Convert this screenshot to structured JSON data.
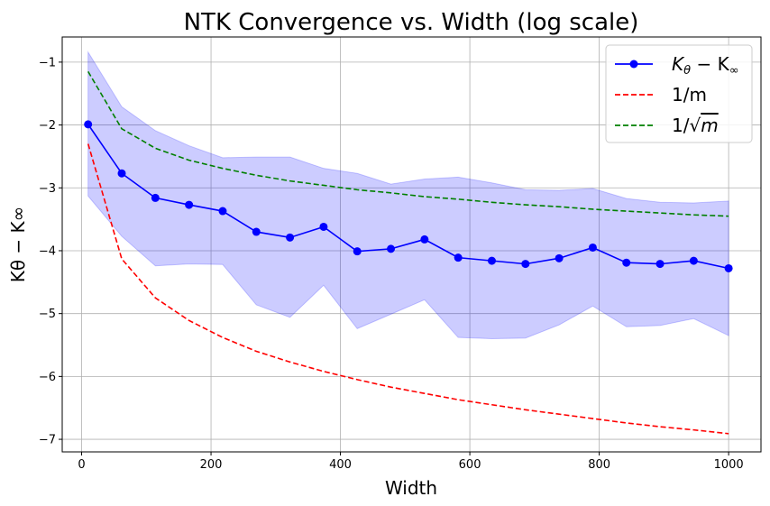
{
  "chart_data": {
    "type": "line",
    "title": "NTK Convergence vs. Width (log scale)",
    "xlabel": "Width",
    "ylabel": "Kθ − K∞",
    "xlim": [
      -30,
      1050
    ],
    "ylim": [
      -7.2,
      -0.6
    ],
    "x_ticks": [
      0,
      200,
      400,
      600,
      800,
      1000
    ],
    "x_tick_labels": [
      "0",
      "200",
      "400",
      "600",
      "800",
      "1000"
    ],
    "y_ticks": [
      -7,
      -6,
      -5,
      -4,
      -3,
      -2,
      -1
    ],
    "y_tick_labels": [
      "−7",
      "−6",
      "−5",
      "−4",
      "−3",
      "−2",
      "−1"
    ],
    "grid": true,
    "legend_position": "top-right",
    "x": [
      10,
      62,
      114,
      166,
      218,
      270,
      322,
      374,
      426,
      478,
      530,
      582,
      634,
      686,
      738,
      790,
      842,
      894,
      946,
      1000
    ],
    "series": [
      {
        "name": "Kθ − K∞",
        "legend_main": "K",
        "legend_sub1": "θ",
        "legend_mid": " − K",
        "legend_sub2": "∞",
        "style": "line-marker",
        "color": "#0000ff",
        "values": [
          -1.99,
          -2.77,
          -3.16,
          -3.27,
          -3.37,
          -3.7,
          -3.79,
          -3.62,
          -4.01,
          -3.97,
          -3.82,
          -4.11,
          -4.16,
          -4.21,
          -4.12,
          -3.95,
          -4.19,
          -4.21,
          -4.16,
          -4.28
        ],
        "band_lower": [
          -3.13,
          -3.77,
          -4.24,
          -4.21,
          -4.22,
          -4.86,
          -5.06,
          -4.55,
          -5.24,
          -5.01,
          -4.78,
          -5.38,
          -5.4,
          -5.39,
          -5.18,
          -4.88,
          -5.21,
          -5.19,
          -5.08,
          -5.35
        ],
        "band_upper": [
          -0.84,
          -1.71,
          -2.09,
          -2.33,
          -2.52,
          -2.51,
          -2.51,
          -2.69,
          -2.77,
          -2.94,
          -2.86,
          -2.83,
          -2.92,
          -3.03,
          -3.04,
          -3.01,
          -3.17,
          -3.23,
          -3.24,
          -3.21
        ]
      },
      {
        "name": "1/m",
        "style": "dashed",
        "color": "#ff0000",
        "values": [
          -2.3,
          -4.13,
          -4.75,
          -5.11,
          -5.38,
          -5.6,
          -5.77,
          -5.92,
          -6.05,
          -6.17,
          -6.27,
          -6.37,
          -6.45,
          -6.53,
          -6.6,
          -6.67,
          -6.74,
          -6.8,
          -6.85,
          -6.91
        ]
      },
      {
        "name": "1/√m",
        "legend_pre": "1/√",
        "legend_var": "m",
        "style": "dashed",
        "color": "#008000",
        "values": [
          -1.15,
          -2.06,
          -2.37,
          -2.56,
          -2.69,
          -2.8,
          -2.89,
          -2.96,
          -3.03,
          -3.08,
          -3.14,
          -3.18,
          -3.23,
          -3.27,
          -3.3,
          -3.34,
          -3.37,
          -3.4,
          -3.43,
          -3.45
        ]
      }
    ]
  }
}
